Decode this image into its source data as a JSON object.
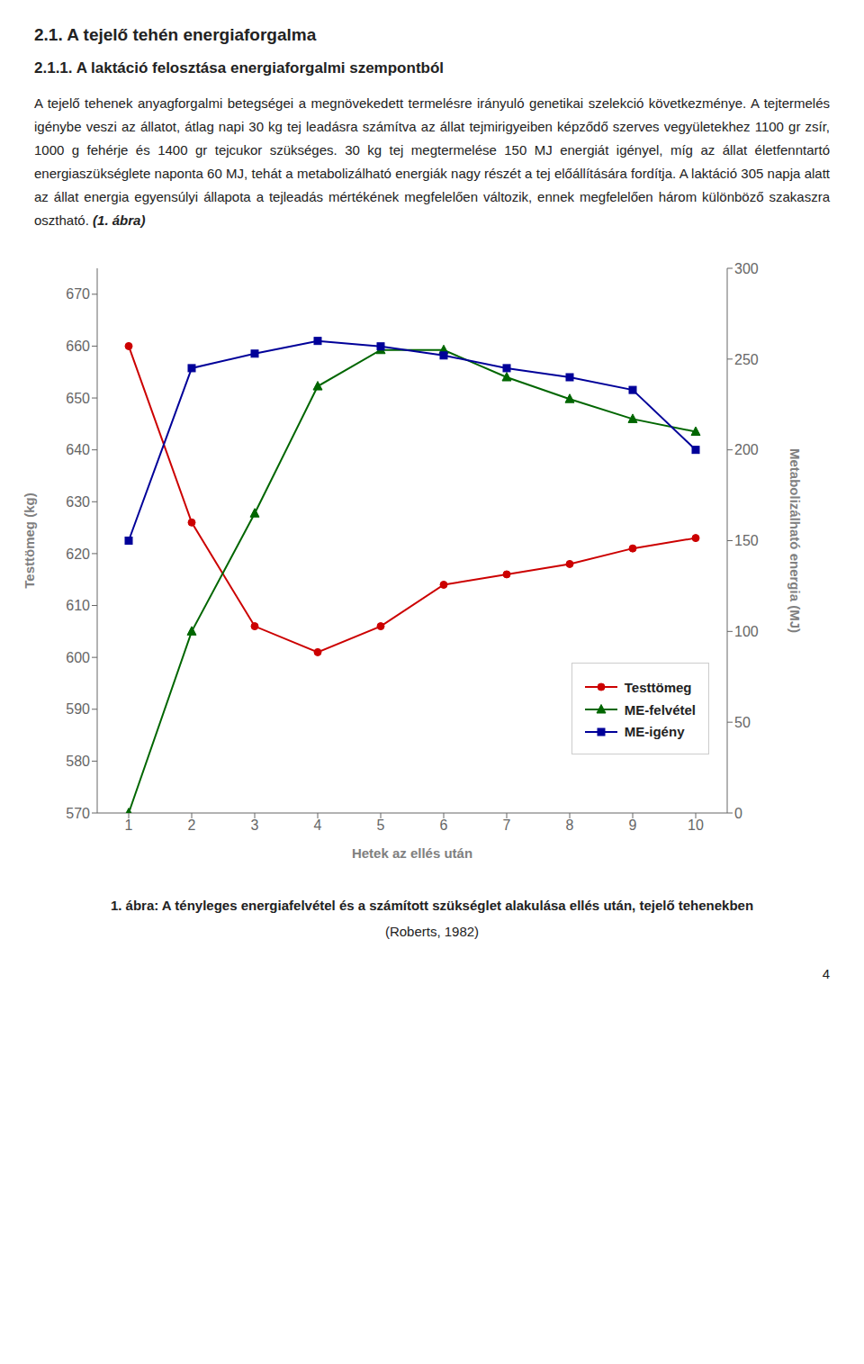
{
  "chart_data": {
    "type": "line",
    "title": "1. ábra: A tényleges energiafelvétel és a számított szükséglet alakulása ellés után, tejelő tehenekben",
    "subtitle": "(Roberts, 1982)",
    "annotations": [
      "2.1. A tejelő tehén energiaforgalma",
      "2.1.1. A laktáció felosztása energiaforgalmi szempontból",
      "A tejelő tehenek anyagforgalmi betegségei a megnövekedett termelésre irányuló genetikai szelekció következménye. A tejtermelés igénybe veszi az állatot, átlag napi 30 kg tej leadásra számítva az állat tejmirigyeiben képződő szerves vegyületekhez 1100 gr zsír, 1000 g fehérje és 1400 gr tejcukor szükséges. 30 kg tej megtermelése 150 MJ energiát igényel, míg az állat életfenntartó energiaszükséglete naponta 60 MJ, tehát a metabolizálható energiák nagy részét a tej előállítására fordítja. A laktáció 305 napja alatt az állat energia egyensúlyi állapota a tejleadás mértékének megfelelően változik, ennek megfelelően három különböző szakaszra osztható.",
      "(1. ábra)",
      "4"
    ],
    "x_label": "Hetek az ellés után",
    "y_label": "Testtömeg (kg)",
    "y2_label": "Metabolizálható energia (MJ)",
    "x": [
      1,
      2,
      3,
      4,
      5,
      6,
      7,
      8,
      9,
      10
    ],
    "xlim": [
      0.5,
      10.5
    ],
    "xticks": [
      1,
      2,
      3,
      4,
      5,
      6,
      7,
      8,
      9,
      10
    ],
    "ylim": [
      570,
      675
    ],
    "yticks": [
      570,
      580,
      590,
      600,
      610,
      620,
      630,
      640,
      650,
      660,
      670
    ],
    "y2lim": [
      0,
      300
    ],
    "y2ticks": [
      0,
      50,
      100,
      150,
      200,
      250,
      300
    ],
    "grid": false,
    "legend": "lower right",
    "series": [
      {
        "name": "Testtömeg",
        "color": "#cc0000",
        "marker": "circle",
        "values": [
          660,
          626,
          606,
          601,
          606,
          614,
          616,
          618,
          621,
          623
        ]
      },
      {
        "name": "ME-felvétel",
        "color": "#006600",
        "marker": "triangle",
        "axis": "y2",
        "values": [
          0,
          100,
          165,
          235,
          255,
          255,
          240,
          228,
          217,
          210
        ]
      },
      {
        "name": "ME-igény",
        "color": "#000099",
        "marker": "square",
        "axis": "y2",
        "values": [
          150,
          245,
          253,
          260,
          257,
          252,
          245,
          240,
          233,
          200
        ]
      }
    ]
  }
}
